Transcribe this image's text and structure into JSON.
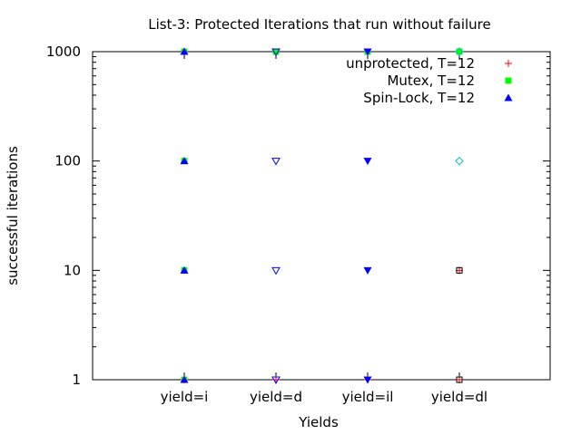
{
  "chart_data": {
    "type": "scatter",
    "title": "List-3: Protected Iterations that run without failure",
    "xlabel": "Yields",
    "ylabel": "successful iterations",
    "yscale": "log",
    "ylim": [
      1,
      1000
    ],
    "yticks": [
      1,
      10,
      100,
      1000
    ],
    "categories": [
      "yield=i",
      "yield=d",
      "yield=il",
      "yield=dl"
    ],
    "legend_position": "top-right",
    "grid": false,
    "series": [
      {
        "name": "unprotected, T=12",
        "color": "#ff0000",
        "marker": "plus",
        "points": [
          {
            "x": "yield=i",
            "y": 1
          },
          {
            "x": "yield=d",
            "y": 1
          },
          {
            "x": "yield=il",
            "y": 1
          },
          {
            "x": "yield=dl",
            "y": 1
          },
          {
            "x": "yield=dl",
            "y": 10
          }
        ]
      },
      {
        "name": "Mutex, T=12",
        "color": "#00ff00",
        "marker": "square",
        "points": [
          {
            "x": "yield=i",
            "y": 1
          },
          {
            "x": "yield=i",
            "y": 10
          },
          {
            "x": "yield=i",
            "y": 100
          },
          {
            "x": "yield=i",
            "y": 1000
          },
          {
            "x": "yield=d",
            "y": 1000
          },
          {
            "x": "yield=il",
            "y": 1000
          },
          {
            "x": "yield=dl",
            "y": 1000
          }
        ]
      },
      {
        "name": "Spin-Lock, T=12",
        "color": "#0000ff",
        "marker": "triangle-up",
        "points": [
          {
            "x": "yield=i",
            "y": 1
          },
          {
            "x": "yield=i",
            "y": 10
          },
          {
            "x": "yield=i",
            "y": 100
          },
          {
            "x": "yield=i",
            "y": 1000
          }
        ]
      },
      {
        "name": "",
        "color": "#0000ff",
        "marker": "triangle-down-open",
        "points": [
          {
            "x": "yield=d",
            "y": 1
          },
          {
            "x": "yield=d",
            "y": 10
          },
          {
            "x": "yield=d",
            "y": 100
          },
          {
            "x": "yield=d",
            "y": 1000
          }
        ]
      },
      {
        "name": "",
        "color": "#0000ff",
        "marker": "triangle-down",
        "points": [
          {
            "x": "yield=il",
            "y": 1
          },
          {
            "x": "yield=il",
            "y": 10
          },
          {
            "x": "yield=il",
            "y": 100
          },
          {
            "x": "yield=il",
            "y": 1000
          }
        ]
      },
      {
        "name": "",
        "color": "#00bfbf",
        "marker": "diamond-open",
        "points": [
          {
            "x": "yield=dl",
            "y": 100
          },
          {
            "x": "yield=dl",
            "y": 1000
          }
        ]
      },
      {
        "name": "",
        "color": "#000000",
        "marker": "square-open",
        "points": [
          {
            "x": "yield=dl",
            "y": 1
          },
          {
            "x": "yield=dl",
            "y": 10
          }
        ]
      }
    ]
  }
}
